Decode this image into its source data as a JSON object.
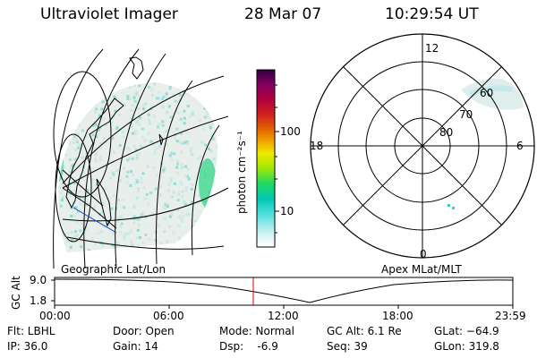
{
  "header": {
    "instrument": "Ultraviolet Imager",
    "date": "28 Mar 07",
    "time": "10:29:54 UT"
  },
  "geo_panel": {
    "label": "Geographic Lat/Lon"
  },
  "colorbar": {
    "unit_label": "photon cm⁻²s⁻¹",
    "ticks": [
      "100",
      "10"
    ],
    "scale": "log",
    "colors": [
      "#ffffff",
      "#ccf2f2",
      "#55e0e0",
      "#00c8b4",
      "#22d860",
      "#a8e800",
      "#f0e800",
      "#f0a000",
      "#e06000",
      "#d02020",
      "#b00040",
      "#800060",
      "#300040"
    ]
  },
  "polar_panel": {
    "label": "Apex MLat/MLT",
    "mlt_labels": {
      "top": "12",
      "bottom": "0",
      "left": "18",
      "right": "6"
    },
    "lat_labels": [
      "60",
      "70",
      "80"
    ]
  },
  "timeline": {
    "ylabel": "GC Alt",
    "ytick_top": "9.0",
    "ytick_bottom": "1.8",
    "xticks": [
      "00:00",
      "06:00",
      "12:00",
      "18:00",
      "23:59"
    ],
    "current_time_color": "#d00000"
  },
  "footer": {
    "flt": "Flt: LBHL",
    "ip": "IP: 36.0",
    "door": "Door: Open",
    "gain": "Gain: 14",
    "mode": "Mode: Normal",
    "dsp": "Dsp:    -6.9",
    "gcalt": "GC Alt: 6.1 Re",
    "seq": "Seq: 39",
    "glat": "GLat: −64.9",
    "glon": "GLon: 319.8"
  }
}
